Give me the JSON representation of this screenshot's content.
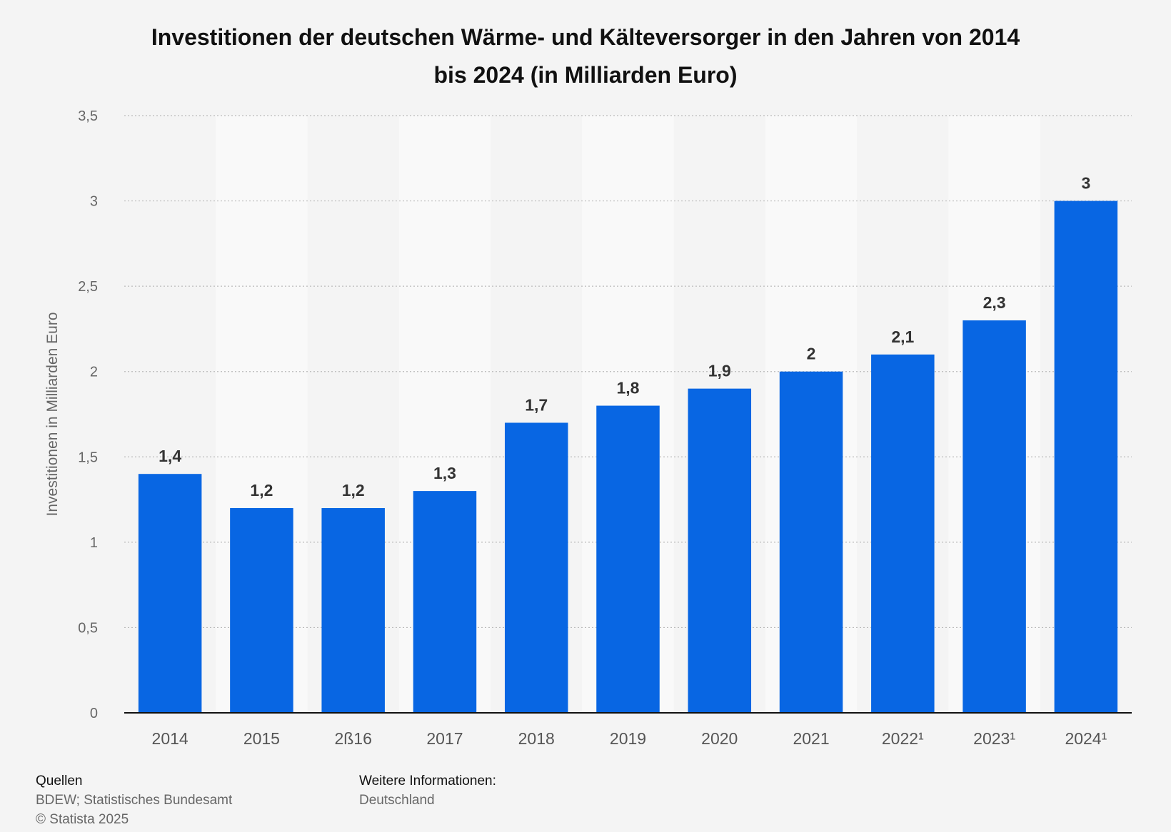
{
  "chart_data": {
    "type": "bar",
    "title_lines": [
      "Investitionen der deutschen Wärme- und Kälteversorger in den Jahren von 2014",
      "bis 2024 (in Milliarden Euro)"
    ],
    "categories": [
      "2014",
      "2015",
      "2ß16",
      "2017",
      "2018",
      "2019",
      "2020",
      "2021",
      "2022¹",
      "2023¹",
      "2024¹"
    ],
    "values": [
      1.4,
      1.2,
      1.2,
      1.3,
      1.7,
      1.8,
      1.9,
      2,
      2.1,
      2.3,
      3
    ],
    "data_labels": [
      "1,4",
      "1,2",
      "1,2",
      "1,3",
      "1,7",
      "1,8",
      "1,9",
      "2",
      "2,1",
      "2,3",
      "3"
    ],
    "xlabel": "",
    "ylabel": "Investitionen in Milliarden Euro",
    "ylim": [
      0,
      3.5
    ],
    "yticks": [
      0,
      0.5,
      1,
      1.5,
      2,
      2.5,
      3,
      3.5
    ],
    "ytick_labels": [
      "0",
      "0,5",
      "1",
      "1,5",
      "2",
      "2,5",
      "3",
      "3,5"
    ],
    "grid": true,
    "bar_color": "#0866e3"
  },
  "footer": {
    "sources_heading": "Quellen",
    "sources_text": "BDEW; Statistisches Bundesamt",
    "copyright": "© Statista 2025",
    "info_heading": "Weitere Informationen:",
    "info_text": "Deutschland"
  }
}
